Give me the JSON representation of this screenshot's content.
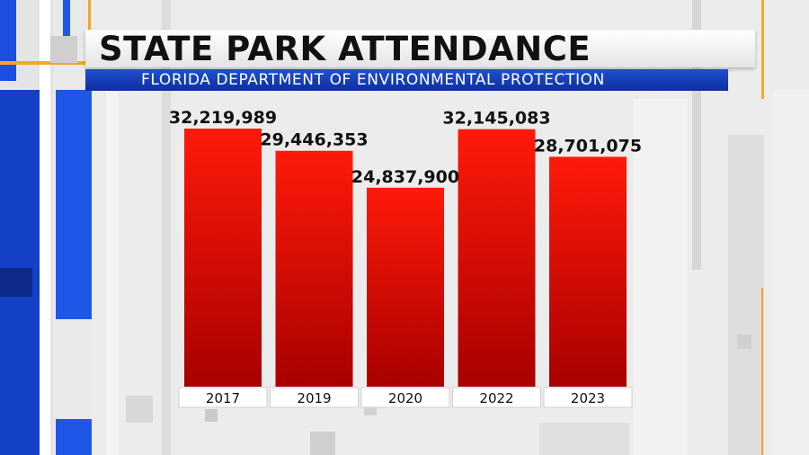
{
  "title": "STATE PARK ATTENDANCE",
  "subtitle": "FLORIDA DEPARTMENT OF ENVIRONMENTAL PROTECTION",
  "colors": {
    "bar_top": "#ff1a0a",
    "bar_bottom": "#a80000",
    "accent_blue": "#1646d6",
    "accent_orange": "#f5a623",
    "background": "#e6e6e6"
  },
  "chart_data": {
    "type": "bar",
    "categories": [
      "2017",
      "2019",
      "2020",
      "2022",
      "2023"
    ],
    "values": [
      32219989,
      29446353,
      24837900,
      32145083,
      28701075
    ],
    "value_labels": [
      "32,219,989",
      "29,446,353",
      "24,837,900",
      "32,145,083",
      "28,701,075"
    ],
    "title": "STATE PARK ATTENDANCE",
    "subtitle": "FLORIDA DEPARTMENT OF ENVIRONMENTAL PROTECTION",
    "xlabel": "",
    "ylabel": "",
    "grid": false,
    "legend": "none"
  }
}
